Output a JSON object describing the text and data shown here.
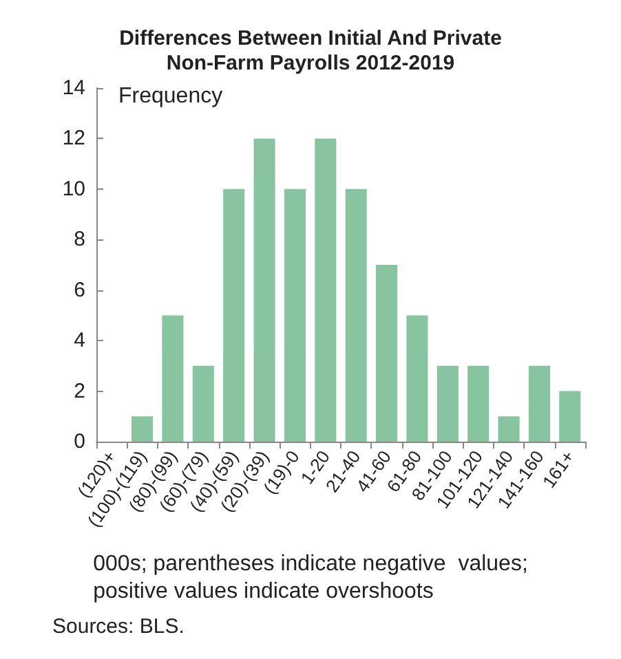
{
  "chart_data": {
    "type": "bar",
    "title": "Differences Between Initial And Private\nNon-Farm Payrolls 2012-2019",
    "ylabel": "Frequency",
    "categories": [
      "(120)+",
      "(100)-(119)",
      "(80)-(99)",
      "(60)-(79)",
      "(40)-(59)",
      "(20)-(39)",
      "(19)-0",
      "1-20",
      "21-40",
      "41-60",
      "61-80",
      "81-100",
      "101-120",
      "121-140",
      "141-160",
      "161+"
    ],
    "values": [
      0,
      1,
      5,
      3,
      10,
      12,
      10,
      12,
      10,
      7,
      5,
      3,
      3,
      1,
      3,
      2
    ],
    "color": "#88c4a0",
    "ylim": [
      0,
      14
    ],
    "yticks": [
      0,
      2,
      4,
      6,
      8,
      10,
      12,
      14
    ],
    "grid": false,
    "annotations": [
      "000s; parentheses indicate negative  values;\npositive values indicate overshoots",
      "Sources: BLS."
    ]
  }
}
